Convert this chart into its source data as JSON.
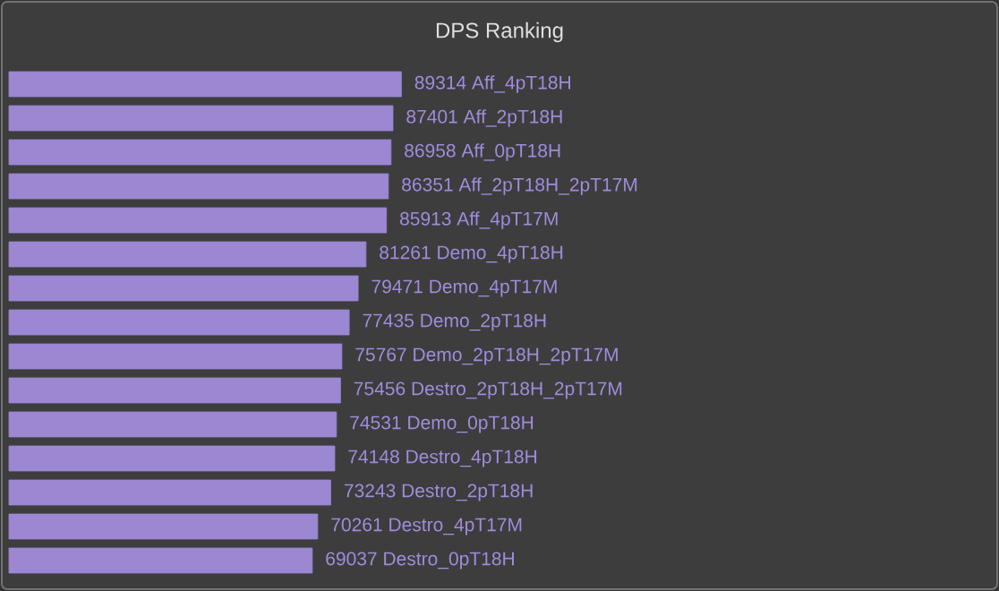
{
  "chart_data": {
    "type": "bar",
    "orientation": "horizontal",
    "title": "DPS Ranking",
    "categories": [
      null,
      null,
      null,
      null,
      null,
      null,
      null,
      null,
      null,
      null,
      null,
      null,
      null,
      null,
      null
    ],
    "values": [
      89314,
      87401,
      86958,
      86351,
      85913,
      81261,
      79471,
      77435,
      75767,
      75456,
      74531,
      74148,
      73243,
      70261,
      69037
    ],
    "value_labels": [
      "89314  Aff_4pT18H",
      "87401  Aff_2pT18H",
      "86958  Aff_0pT18H",
      "86351  Aff_2pT18H_2pT17M",
      "85913  Aff_4pT17M",
      "81261  Demo_4pT18H",
      "79471  Demo_4pT17M",
      "77435  Demo_2pT18H",
      "75767  Demo_2pT18H_2pT17M",
      "75456  Destro_2pT18H_2pT17M",
      "74531  Demo_0pT18H",
      "74148  Destro_4pT18H",
      "73243  Destro_2pT18H",
      "70261  Destro_4pT17M",
      "69037  Destro_0pT18H"
    ],
    "color": "#9b87d2"
  }
}
